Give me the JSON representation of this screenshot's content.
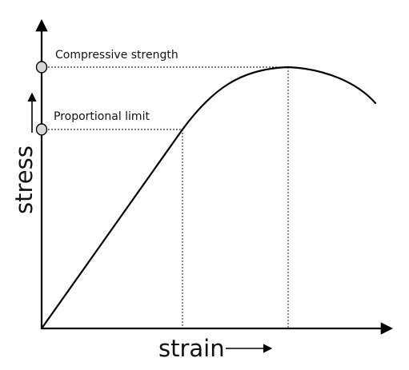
{
  "diagram": {
    "labels": {
      "compressive_strength": "Compressive strength",
      "proportional_limit": "Proportional limit",
      "x_axis": "strain",
      "y_axis": "stress"
    }
  }
}
